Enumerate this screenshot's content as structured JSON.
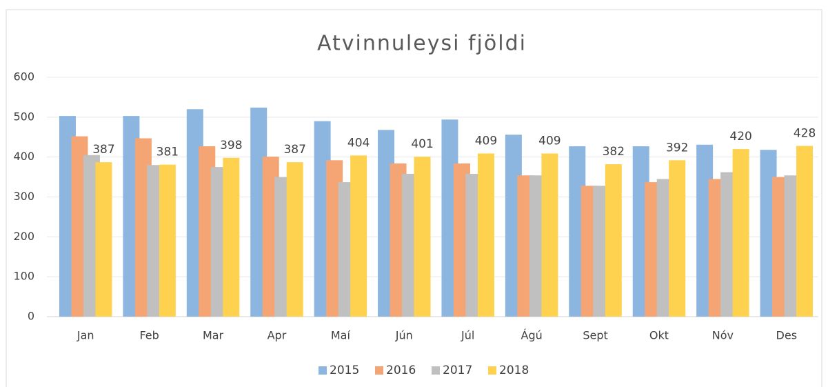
{
  "chart_data": {
    "type": "bar",
    "title": "Atvinnuleysi fjöldi",
    "categories": [
      "Jan",
      "Feb",
      "Mar",
      "Apr",
      "Maí",
      "Jún",
      "Júl",
      "Ágú",
      "Sept",
      "Okt",
      "Nóv",
      "Des"
    ],
    "series": [
      {
        "name": "2015",
        "color": "#8cb6e0",
        "values": [
          503,
          503,
          520,
          524,
          490,
          468,
          494,
          456,
          427,
          427,
          431,
          418
        ]
      },
      {
        "name": "2016",
        "color": "#f4a573",
        "values": [
          452,
          447,
          427,
          401,
          392,
          384,
          384,
          354,
          328,
          337,
          345,
          350
        ]
      },
      {
        "name": "2017",
        "color": "#c0c0c0",
        "values": [
          405,
          380,
          375,
          350,
          337,
          358,
          358,
          354,
          328,
          345,
          362,
          354
        ]
      },
      {
        "name": "2018",
        "color": "#fed24e",
        "values": [
          387,
          381,
          398,
          387,
          404,
          401,
          409,
          409,
          382,
          392,
          420,
          428
        ],
        "data_labels": true
      }
    ],
    "ylim": [
      0,
      600
    ],
    "yticks": [
      0,
      100,
      200,
      300,
      400,
      500,
      600
    ],
    "grid": true,
    "legend": "bottom"
  }
}
